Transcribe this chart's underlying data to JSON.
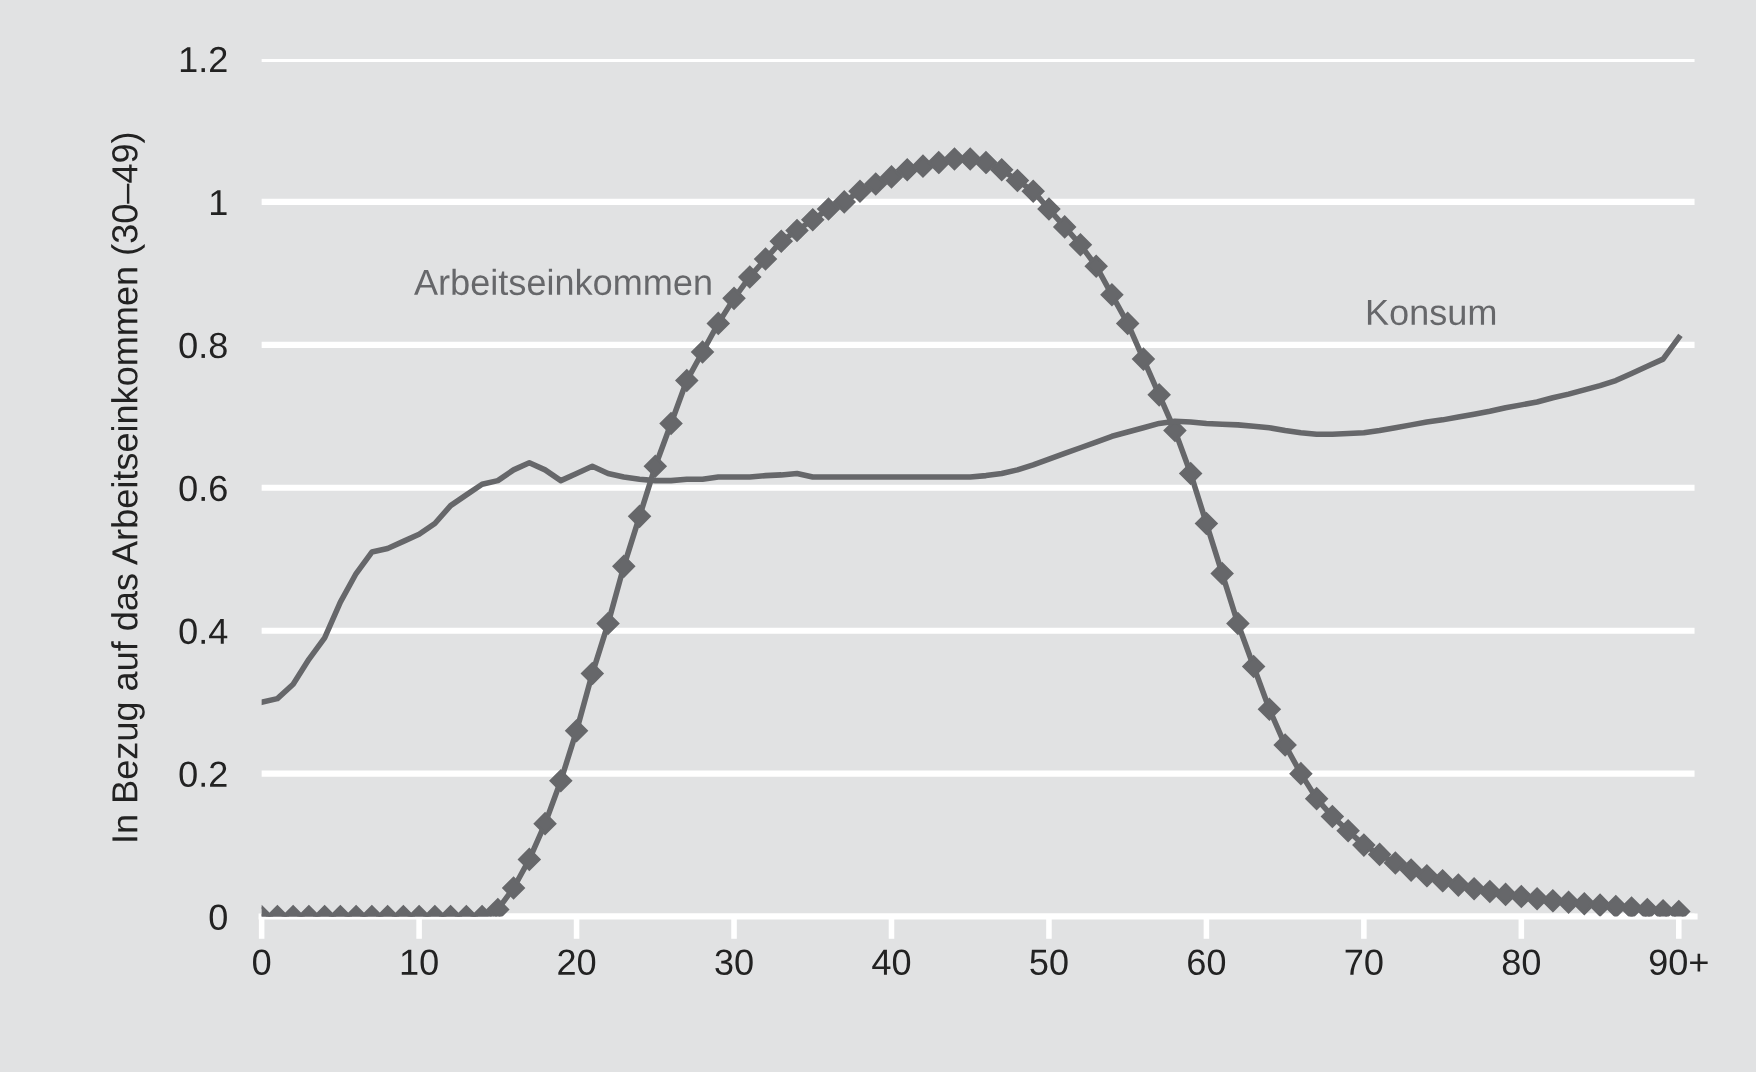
{
  "chart_data": {
    "type": "line",
    "ylabel": "In Bezug auf das Arbeitseinkommen (30–49)",
    "x": [
      0,
      1,
      2,
      3,
      4,
      5,
      6,
      7,
      8,
      9,
      10,
      11,
      12,
      13,
      14,
      15,
      16,
      17,
      18,
      19,
      20,
      21,
      22,
      23,
      24,
      25,
      26,
      27,
      28,
      29,
      30,
      31,
      32,
      33,
      34,
      35,
      36,
      37,
      38,
      39,
      40,
      41,
      42,
      43,
      44,
      45,
      46,
      47,
      48,
      49,
      50,
      51,
      52,
      53,
      54,
      55,
      56,
      57,
      58,
      59,
      60,
      61,
      62,
      63,
      64,
      65,
      66,
      67,
      68,
      69,
      70,
      71,
      72,
      73,
      74,
      75,
      76,
      77,
      78,
      79,
      80,
      81,
      82,
      83,
      84,
      85,
      86,
      87,
      88,
      89,
      90
    ],
    "series": [
      {
        "name": "Arbeitseinkommen",
        "color": "#66676a",
        "marker": "diamond",
        "values": [
          0,
          0,
          0,
          0,
          0,
          0,
          0,
          0,
          0,
          0,
          0,
          0,
          0,
          0,
          0,
          0.01,
          0.04,
          0.08,
          0.13,
          0.19,
          0.26,
          0.34,
          0.41,
          0.49,
          0.56,
          0.63,
          0.69,
          0.75,
          0.79,
          0.83,
          0.865,
          0.895,
          0.92,
          0.945,
          0.96,
          0.975,
          0.99,
          1.0,
          1.015,
          1.025,
          1.035,
          1.045,
          1.05,
          1.055,
          1.06,
          1.06,
          1.055,
          1.045,
          1.03,
          1.015,
          0.99,
          0.965,
          0.94,
          0.91,
          0.87,
          0.83,
          0.78,
          0.73,
          0.68,
          0.62,
          0.55,
          0.48,
          0.41,
          0.35,
          0.29,
          0.24,
          0.2,
          0.165,
          0.14,
          0.12,
          0.1,
          0.087,
          0.075,
          0.065,
          0.057,
          0.05,
          0.044,
          0.039,
          0.035,
          0.031,
          0.028,
          0.025,
          0.022,
          0.02,
          0.018,
          0.016,
          0.014,
          0.012,
          0.01,
          0.008,
          0.007
        ]
      },
      {
        "name": "Konsum",
        "color": "#66676a",
        "marker": "none",
        "values": [
          0.3,
          0.305,
          0.325,
          0.36,
          0.39,
          0.44,
          0.48,
          0.51,
          0.515,
          0.525,
          0.535,
          0.55,
          0.575,
          0.59,
          0.605,
          0.61,
          0.625,
          0.635,
          0.625,
          0.61,
          0.62,
          0.63,
          0.62,
          0.615,
          0.612,
          0.61,
          0.61,
          0.612,
          0.612,
          0.615,
          0.615,
          0.615,
          0.617,
          0.618,
          0.62,
          0.615,
          0.615,
          0.615,
          0.615,
          0.615,
          0.615,
          0.615,
          0.615,
          0.615,
          0.615,
          0.615,
          0.617,
          0.62,
          0.625,
          0.632,
          0.64,
          0.648,
          0.656,
          0.664,
          0.672,
          0.678,
          0.684,
          0.69,
          0.693,
          0.692,
          0.69,
          0.689,
          0.688,
          0.686,
          0.684,
          0.68,
          0.677,
          0.675,
          0.675,
          0.676,
          0.677,
          0.68,
          0.684,
          0.688,
          0.692,
          0.695,
          0.699,
          0.703,
          0.707,
          0.712,
          0.716,
          0.72,
          0.726,
          0.731,
          0.737,
          0.743,
          0.75,
          0.76,
          0.77,
          0.78,
          0.81
        ]
      }
    ],
    "xlim": [
      0,
      91
    ],
    "ylim": [
      0,
      1.2
    ],
    "xticks": [
      0,
      10,
      20,
      30,
      40,
      50,
      60,
      70,
      80,
      {
        "value": 90,
        "label": "90+"
      }
    ],
    "yticks": [
      0,
      0.2,
      0.4,
      0.6,
      0.8,
      1,
      1.2
    ],
    "grid": "y",
    "line_style": "solid",
    "legend": false
  }
}
